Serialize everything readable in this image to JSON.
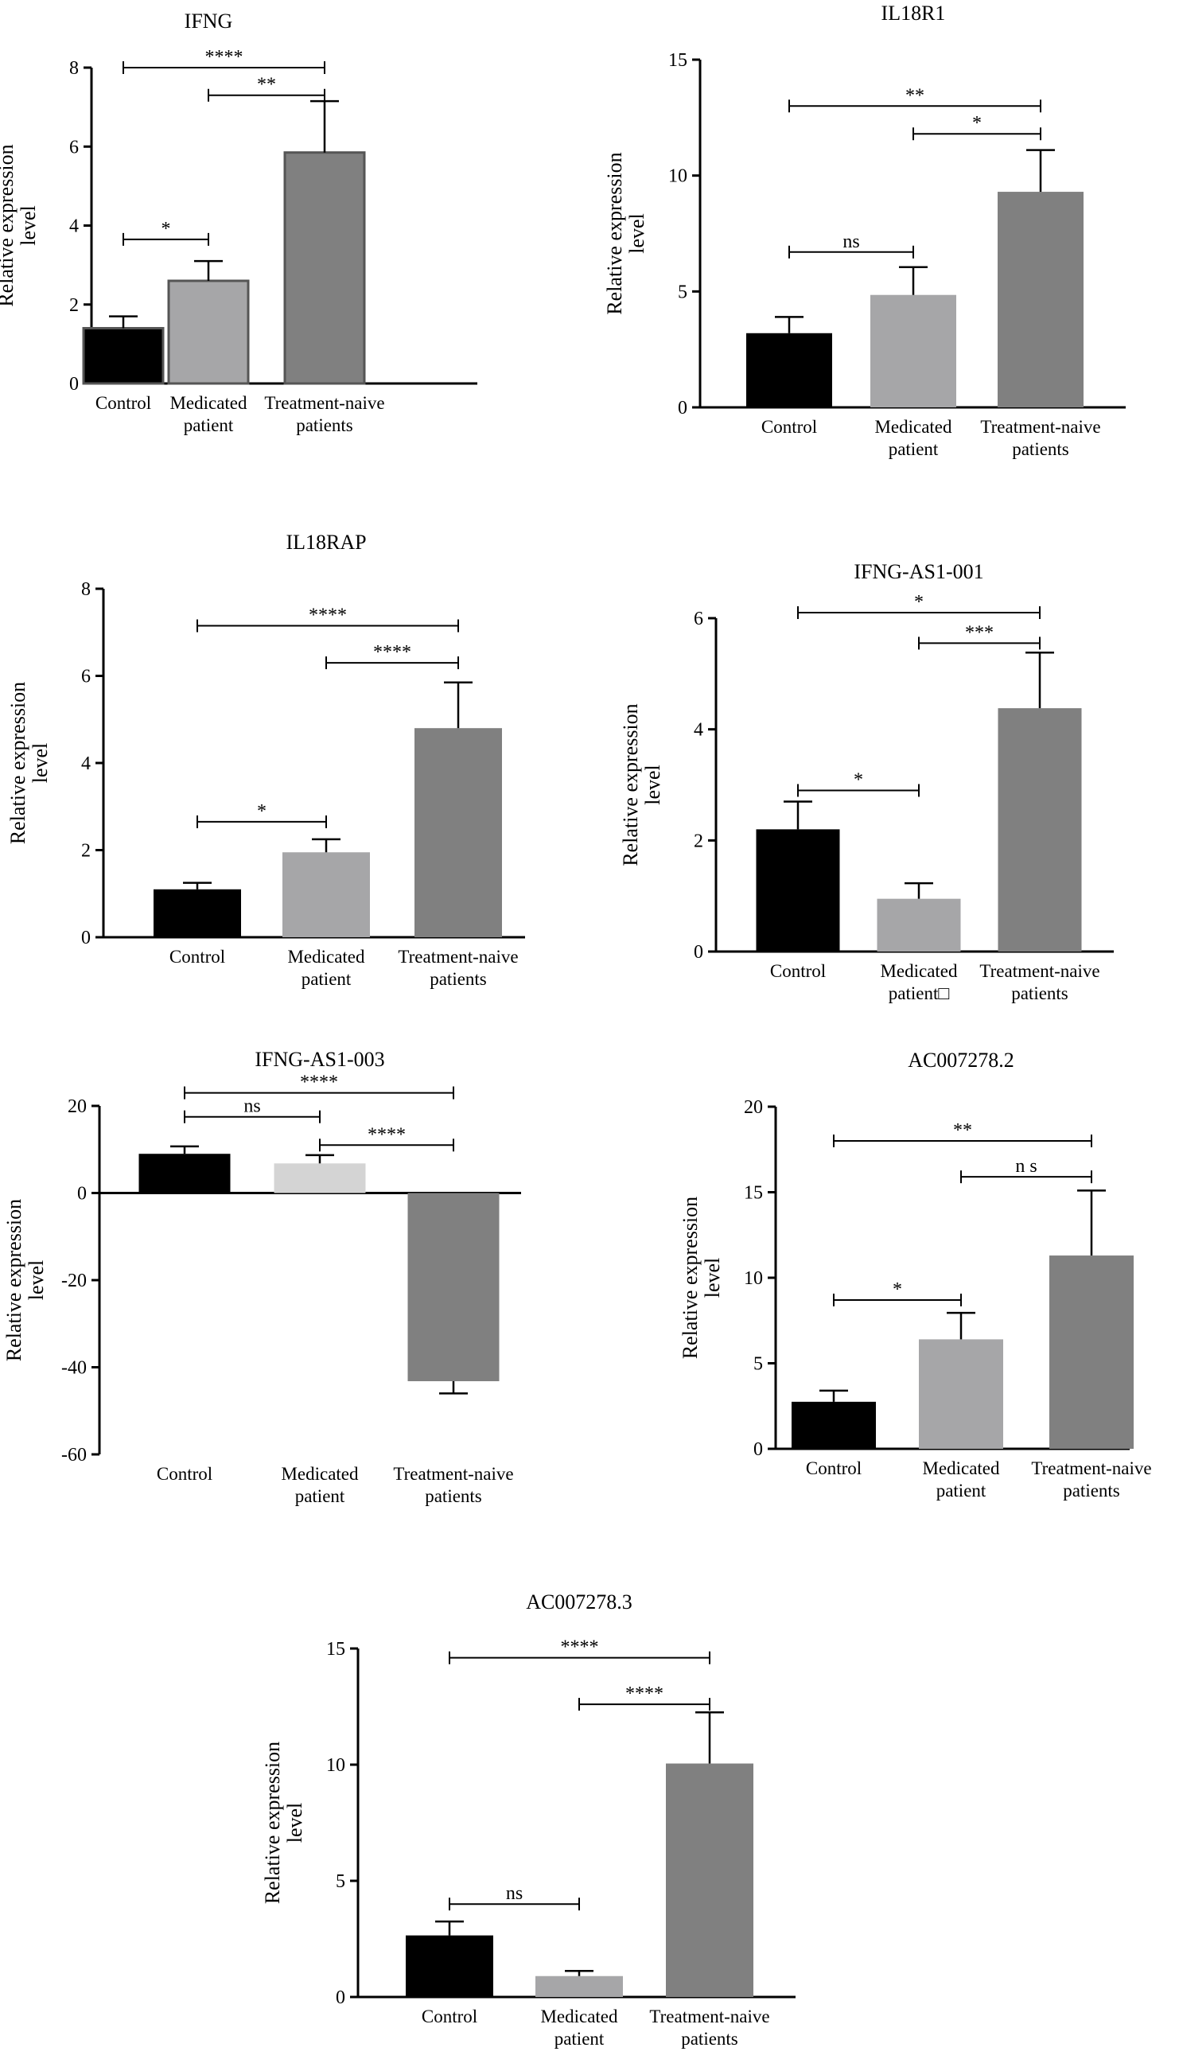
{
  "chart_data": [
    {
      "type": "bar",
      "title": "IFNG",
      "ylabel": [
        "Relative expression",
        "level"
      ],
      "categories": [
        [
          "Control"
        ],
        [
          "Medicated",
          "patient"
        ],
        [
          "Treatment-naive",
          "patients"
        ]
      ],
      "values": [
        1.4,
        2.6,
        5.85
      ],
      "errors": [
        0.3,
        0.5,
        1.3
      ],
      "ylim": [
        0,
        8
      ],
      "yticks": [
        0,
        2,
        4,
        6,
        8
      ],
      "significance": [
        {
          "from": 0,
          "to": 2,
          "label": "****",
          "y": 8.0
        },
        {
          "from": 1,
          "to": 2,
          "label": "**",
          "y": 7.3
        },
        {
          "from": 0,
          "to": 1,
          "label": "*",
          "y": 3.65
        }
      ]
    },
    {
      "type": "bar",
      "title": "IL18R1",
      "ylabel": [
        "Relative expression",
        "level"
      ],
      "categories": [
        [
          "Control"
        ],
        [
          "Medicated",
          "patient"
        ],
        [
          "Treatment-naive",
          "patients"
        ]
      ],
      "values": [
        3.2,
        4.85,
        9.3
      ],
      "errors": [
        0.7,
        1.2,
        1.8
      ],
      "ylim": [
        0,
        15
      ],
      "yticks": [
        0,
        5,
        10,
        15
      ],
      "significance": [
        {
          "from": 0,
          "to": 2,
          "label": "**",
          "y": 13.0
        },
        {
          "from": 1,
          "to": 2,
          "label": "*",
          "y": 11.8
        },
        {
          "from": 0,
          "to": 1,
          "label": "ns",
          "y": 6.7
        }
      ]
    },
    {
      "type": "bar",
      "title": "IL18RAP",
      "ylabel": [
        "Relative expression",
        "level"
      ],
      "categories": [
        [
          "Control"
        ],
        [
          "Medicated",
          "patient"
        ],
        [
          "Treatment-naive",
          "patients"
        ]
      ],
      "values": [
        1.1,
        1.95,
        4.8
      ],
      "errors": [
        0.15,
        0.3,
        1.05
      ],
      "ylim": [
        0,
        8
      ],
      "yticks": [
        0,
        2,
        4,
        6,
        8
      ],
      "significance": [
        {
          "from": 0,
          "to": 2,
          "label": "****",
          "y": 7.15
        },
        {
          "from": 1,
          "to": 2,
          "label": "****",
          "y": 6.3
        },
        {
          "from": 0,
          "to": 1,
          "label": "*",
          "y": 2.65
        }
      ]
    },
    {
      "type": "bar",
      "title": "IFNG-AS1-001",
      "ylabel": [
        "Relative expression",
        "level"
      ],
      "categories": [
        [
          "Control"
        ],
        [
          "Medicated",
          "patient□"
        ],
        [
          "Treatment-naive",
          "patients"
        ]
      ],
      "values": [
        2.2,
        0.95,
        4.38
      ],
      "errors": [
        0.5,
        0.28,
        1.0
      ],
      "ylim": [
        0,
        6
      ],
      "yticks": [
        0,
        2,
        4,
        6
      ],
      "significance": [
        {
          "from": 0,
          "to": 2,
          "label": "*",
          "y": 6.1
        },
        {
          "from": 1,
          "to": 2,
          "label": "***",
          "y": 5.55
        },
        {
          "from": 0,
          "to": 1,
          "label": "*",
          "y": 2.9
        }
      ]
    },
    {
      "type": "bar",
      "title": "IFNG-AS1-003",
      "ylabel": [
        "Relative expression",
        "level"
      ],
      "categories": [
        [
          "Control"
        ],
        [
          "Medicated",
          "patient"
        ],
        [
          "Treatment-naive",
          "patients"
        ]
      ],
      "values": [
        9.0,
        6.8,
        -43.2
      ],
      "errors": [
        1.7,
        1.9,
        2.8
      ],
      "ylim": [
        -60,
        20
      ],
      "yticks": [
        -60,
        -40,
        -20,
        0,
        20
      ],
      "significance": [
        {
          "from": 0,
          "to": 2,
          "label": "****",
          "y": 23.0
        },
        {
          "from": 0,
          "to": 1,
          "label": "ns",
          "y": 17.5
        },
        {
          "from": 1,
          "to": 2,
          "label": "****",
          "y": 11.0
        }
      ]
    },
    {
      "type": "bar",
      "title": "AC007278.2",
      "ylabel": [
        "Relative expression",
        "level"
      ],
      "categories": [
        [
          "Control"
        ],
        [
          "Medicated",
          "patient"
        ],
        [
          "Treatment-naive",
          "patients"
        ]
      ],
      "values": [
        2.75,
        6.4,
        11.3
      ],
      "errors": [
        0.65,
        1.55,
        3.8
      ],
      "ylim": [
        0,
        20
      ],
      "yticks": [
        0,
        5,
        10,
        15,
        20
      ],
      "significance": [
        {
          "from": 0,
          "to": 2,
          "label": "**",
          "y": 18.0
        },
        {
          "from": 1,
          "to": 2,
          "label": "n s",
          "y": 15.9
        },
        {
          "from": 0,
          "to": 1,
          "label": "*",
          "y": 8.7
        }
      ]
    },
    {
      "type": "bar",
      "title": "AC007278.3",
      "ylabel": [
        "Relative expression",
        "level"
      ],
      "categories": [
        [
          "Control"
        ],
        [
          "Medicated",
          "patient"
        ],
        [
          "Treatment-naive",
          "patients"
        ]
      ],
      "values": [
        2.65,
        0.9,
        10.05
      ],
      "errors": [
        0.6,
        0.22,
        2.2
      ],
      "ylim": [
        0,
        15
      ],
      "yticks": [
        0,
        5,
        10,
        15
      ],
      "significance": [
        {
          "from": 0,
          "to": 2,
          "label": "****",
          "y": 14.6
        },
        {
          "from": 1,
          "to": 2,
          "label": "****",
          "y": 12.6
        },
        {
          "from": 0,
          "to": 1,
          "label": "ns",
          "y": 4.0
        }
      ]
    }
  ],
  "colors": {
    "control": "#000000",
    "medicated": "#a6a6a8",
    "naive": "#808080",
    "medicated_light": "#d4d4d4"
  }
}
